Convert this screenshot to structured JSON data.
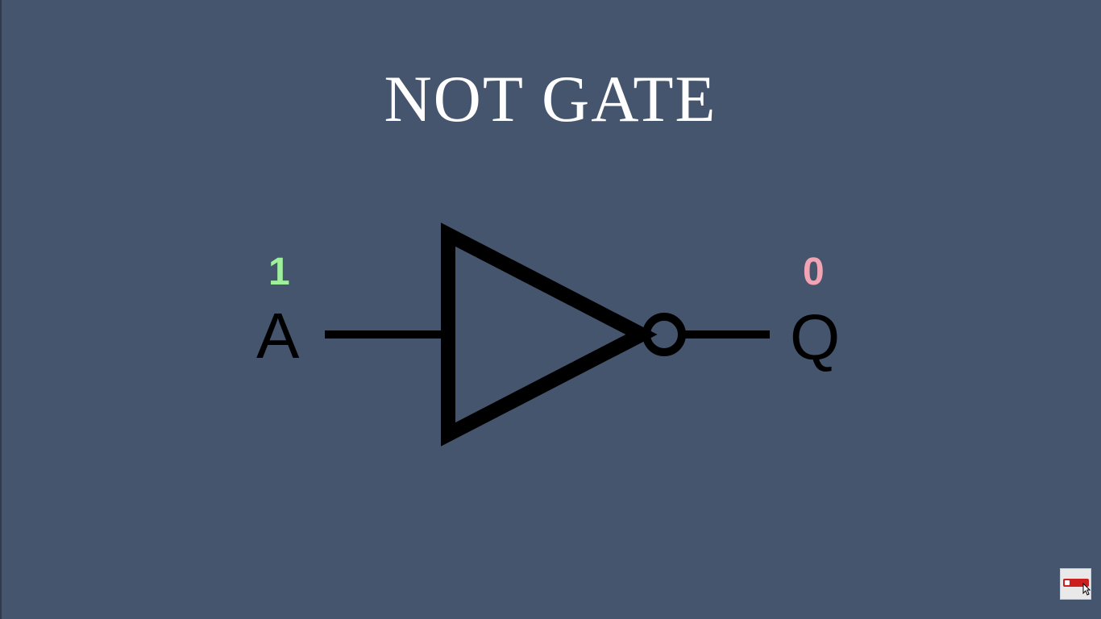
{
  "title": "NOT GATE",
  "gate": {
    "type": "NOT",
    "input_label": "A",
    "output_label": "Q",
    "input_value": "1",
    "output_value": "0",
    "colors": {
      "background": "#46556e",
      "input_value": "#9ef09a",
      "output_value": "#f2a3b4",
      "symbol": "#000000",
      "title": "#ffffff"
    }
  },
  "overlay": {
    "icon": "subscribe-button-icon"
  }
}
